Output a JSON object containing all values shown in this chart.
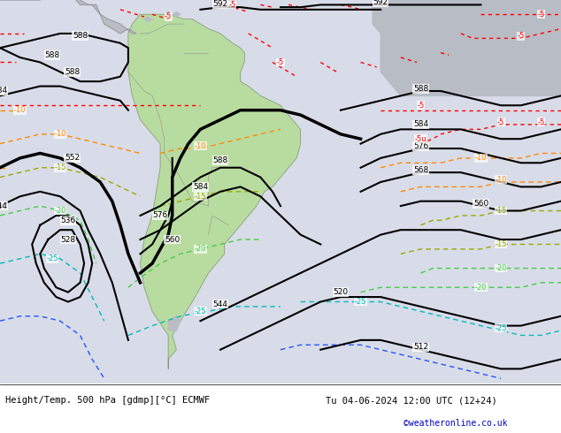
{
  "title_left": "Height/Temp. 500 hPa [gdmp][°C] ECMWF",
  "title_right": "Tu 04-06-2024 12:00 UTC (12+24)",
  "credit": "©weatheronline.co.uk",
  "bg_color": "#d8dce8",
  "land_green_color": "#b8dca0",
  "land_gray_color": "#b8bcc4",
  "border_color": "#909090",
  "footer_bg": "#ffffff",
  "title_color": "#000000",
  "credit_color": "#0000cc",
  "z500_color": "#000000",
  "temp_colors": {
    "-5": "#ff0000",
    "-10": "#ff8800",
    "-15": "#99aa00",
    "-20": "#44cc44",
    "-25": "#00bbbb",
    "-30": "#2255ff"
  },
  "figsize": [
    6.34,
    4.9
  ],
  "dpi": 100,
  "map_extent": [
    -110,
    30,
    -65,
    15
  ]
}
